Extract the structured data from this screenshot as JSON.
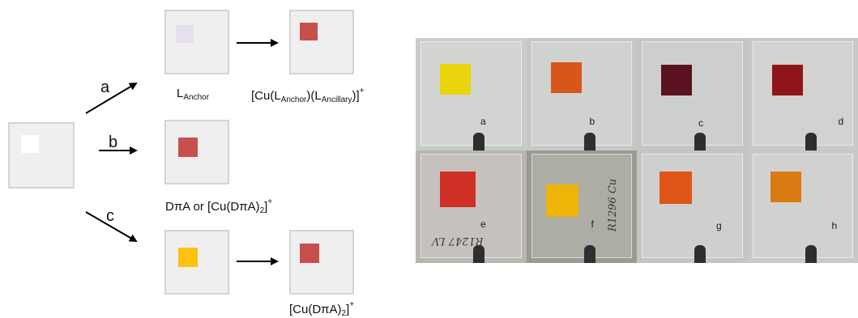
{
  "scheme": {
    "paths": {
      "a": "a",
      "b": "b",
      "c": "c"
    },
    "labels": {
      "anchor_main": "L",
      "anchor_sub": "Anchor",
      "complex_a_open": "[Cu(L",
      "complex_a_sub1": "Anchor",
      "complex_a_mid": ")(L",
      "complex_a_sub2": "Ancillary",
      "complex_a_close": ")]",
      "complex_a_sup": "+",
      "dpa_text": "DπA or [Cu(DπA)",
      "dpa_sub": "2",
      "dpa_close": "]",
      "dpa_sup": "+",
      "complex_c_open": "[Cu(DπA)",
      "complex_c_sub": "2",
      "complex_c_close": "]",
      "complex_c_sup": "+"
    },
    "colors": {
      "blank": "#ffffff",
      "anchor_film": "#e6dff0",
      "copper_complex": "#c8504c",
      "dye_film": "#ffc20e",
      "slide_bg": "#efefef",
      "slide_border": "#d4d4d4"
    }
  },
  "photo": {
    "panels": [
      {
        "label": "a",
        "film_color": "#e8d40a",
        "bg": "#c9cbc8"
      },
      {
        "label": "b",
        "film_color": "#d8561c",
        "bg": "#c6c8c5"
      },
      {
        "label": "c",
        "film_color": "#5a1220",
        "bg": "#c3c5c2"
      },
      {
        "label": "d",
        "film_color": "#8f1518",
        "bg": "#c8cac7"
      },
      {
        "label": "e",
        "film_color": "#cf2f25",
        "bg": "#b9b5b0"
      },
      {
        "label": "f",
        "film_color": "#efb408",
        "bg": "#9b9a92"
      },
      {
        "label": "g",
        "film_color": "#e0551a",
        "bg": "#c4c6c3"
      },
      {
        "label": "h",
        "film_color": "#d97a12",
        "bg": "#c7c9c6"
      }
    ],
    "handwriting": {
      "e": "R1247 LV",
      "f": "R1296 Cu"
    }
  }
}
